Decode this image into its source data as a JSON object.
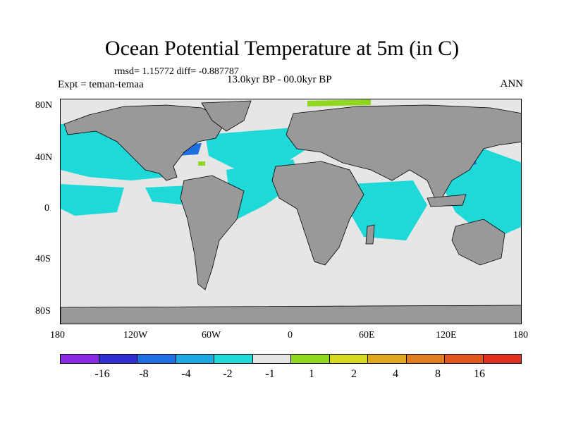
{
  "title": "Ocean Potential Temperature at 5m (in C)",
  "stats": "rmsd= 1.15772 diff= -0.887787",
  "experiment": "Expt = teman-temaa",
  "period": "13.0kyr BP - 00.0kyr BP",
  "season": "ANN",
  "lat_labels": [
    "80N",
    "40N",
    "0",
    "40S",
    "80S"
  ],
  "lon_labels": [
    "180",
    "120W",
    "60W",
    "0",
    "60E",
    "120E",
    "180"
  ],
  "colorbar": {
    "colors": [
      "#8a2be2",
      "#3030d0",
      "#1e6fe0",
      "#1fa8e0",
      "#1fd8d8",
      "#e6e6e6",
      "#8fd81f",
      "#d8d81f",
      "#e0a81f",
      "#e07f1f",
      "#e0581f",
      "#e0301f"
    ],
    "labels": [
      "-16",
      "-8",
      "-4",
      "-2",
      "-1",
      "1",
      "2",
      "4",
      "8",
      "16"
    ]
  },
  "legend_colors": {
    "land": "#999999",
    "ocean_neutral": "#e6e6e6",
    "cool": "#1fd8d8",
    "cooler": "#1e6fe0"
  }
}
